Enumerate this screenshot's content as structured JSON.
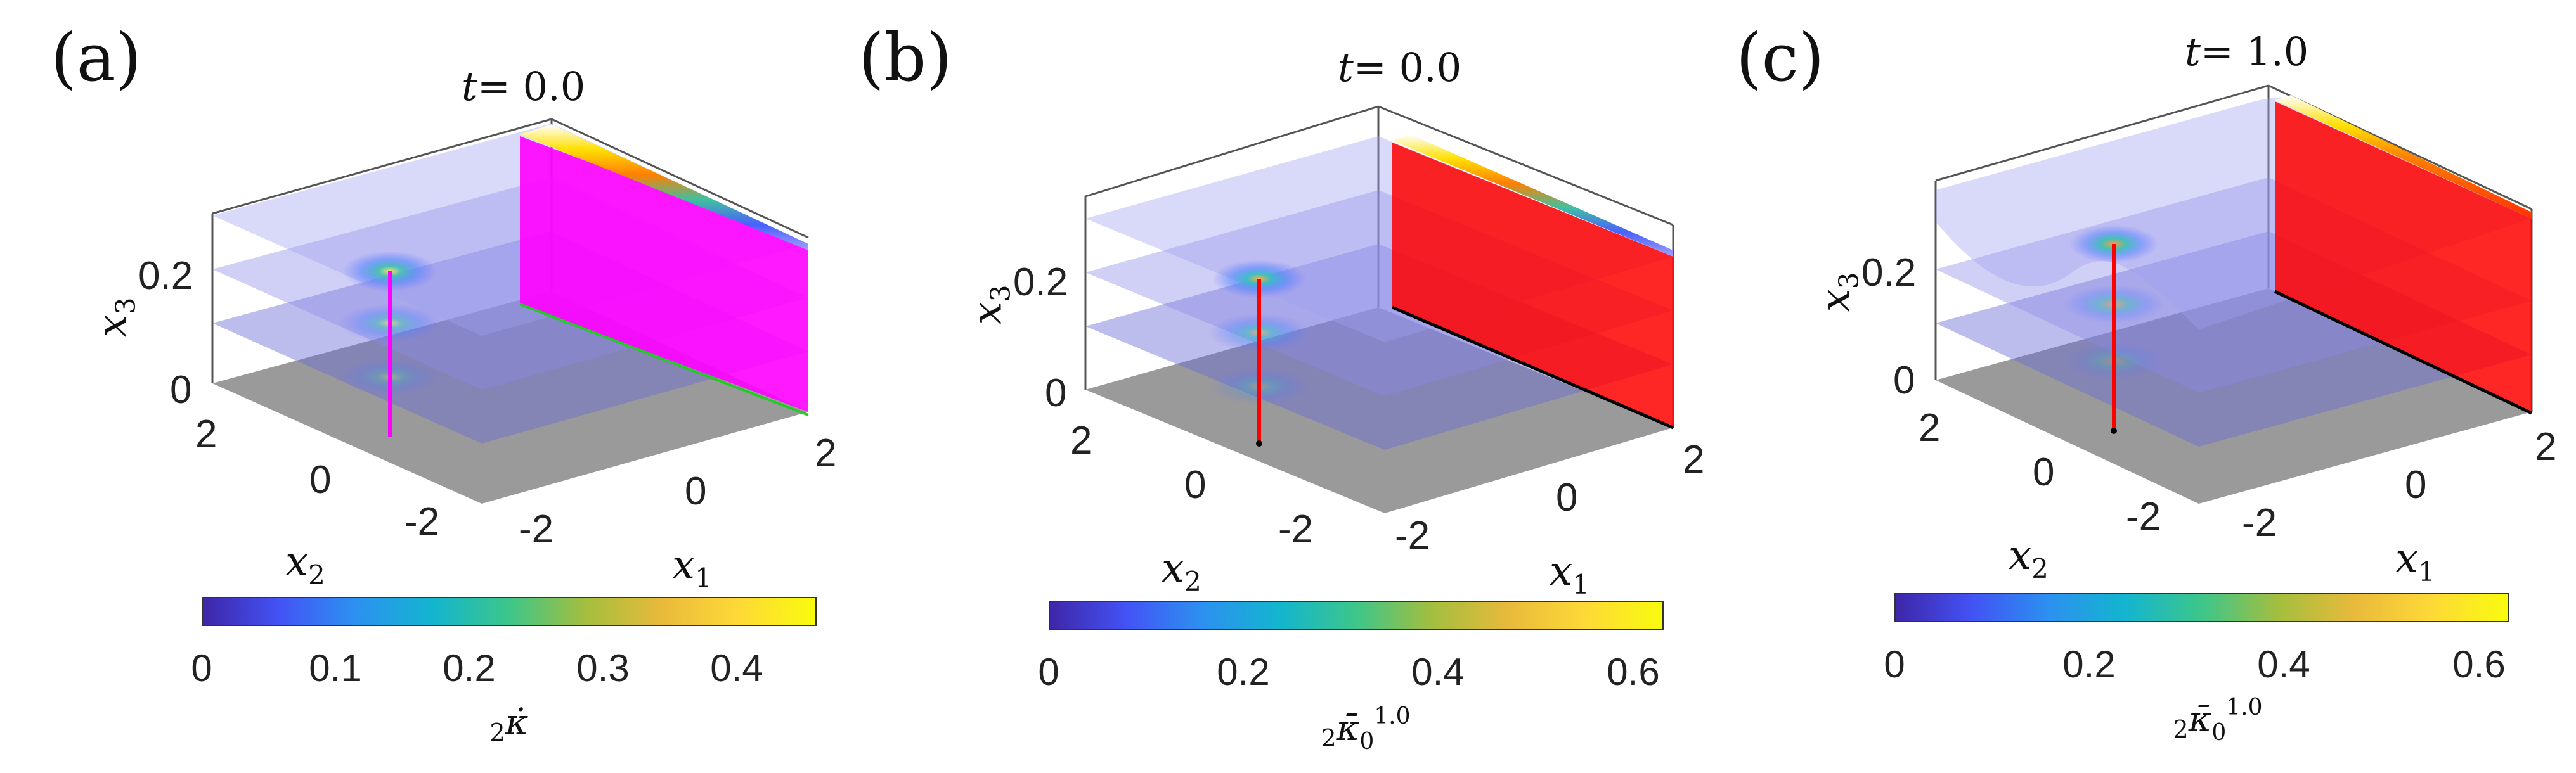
{
  "figure": {
    "panels": [
      {
        "label": "(a)",
        "title_var": "t",
        "title_val": "= 0.0",
        "x3_ticks": [
          "0",
          "0.2"
        ],
        "x2_ticks": [
          "2",
          "0",
          "-2"
        ],
        "x1_ticks": [
          "-2",
          "0",
          "2"
        ],
        "xlabel": "x",
        "xlabel_sub": "1",
        "ylabel": "x",
        "ylabel_sub": "2",
        "zlabel": "x",
        "zlabel_sub": "3",
        "colorbar_ticks": [
          "0",
          "0.1",
          "0.2",
          "0.3",
          "0.4"
        ],
        "colorbar_label": "κ̇",
        "colorbar_prefix": "2",
        "colorbar_sup": "",
        "colorbar_sub": "",
        "wall_color": "#ff00ff",
        "line_color": "#ff00ff",
        "base_line_color": "#22cc22"
      },
      {
        "label": "(b)",
        "title_var": "t",
        "title_val": "= 0.0",
        "x3_ticks": [
          "0",
          "0.2"
        ],
        "x2_ticks": [
          "2",
          "0",
          "-2"
        ],
        "x1_ticks": [
          "-2",
          "0",
          "2"
        ],
        "xlabel": "x",
        "xlabel_sub": "1",
        "ylabel": "x",
        "ylabel_sub": "2",
        "zlabel": "x",
        "zlabel_sub": "3",
        "colorbar_ticks": [
          "0",
          "0.2",
          "0.4",
          "0.6"
        ],
        "colorbar_label": "κ̄",
        "colorbar_prefix": "2",
        "colorbar_sup": "1.0",
        "colorbar_sub": "0",
        "wall_color": "#ff0000",
        "line_color": "#ff0000",
        "base_line_color": "#000000"
      },
      {
        "label": "(c)",
        "title_var": "t",
        "title_val": "= 1.0",
        "x3_ticks": [
          "0",
          "0.2"
        ],
        "x2_ticks": [
          "2",
          "0",
          "-2"
        ],
        "x1_ticks": [
          "-2",
          "0",
          "2"
        ],
        "xlabel": "x",
        "xlabel_sub": "1",
        "ylabel": "x",
        "ylabel_sub": "2",
        "zlabel": "x",
        "zlabel_sub": "3",
        "colorbar_ticks": [
          "0",
          "0.2",
          "0.4",
          "0.6"
        ],
        "colorbar_label": "κ̄",
        "colorbar_prefix": "2",
        "colorbar_sup": "1.0",
        "colorbar_sub": "0",
        "wall_color": "#ff0000",
        "line_color": "#ff0000",
        "base_line_color": "#000000"
      }
    ]
  },
  "chart_data": [
    {
      "type": "surface3d",
      "title": "t= 0.0",
      "xlabel": "x1",
      "ylabel": "x2",
      "zlabel": "x3",
      "x_range": [
        -2.5,
        2.5
      ],
      "y_range": [
        -2.5,
        2.5
      ],
      "z_range": [
        0,
        0.3
      ],
      "x_ticks": [
        -2,
        0,
        2
      ],
      "y_ticks": [
        -2,
        0,
        2
      ],
      "z_ticks": [
        0,
        0.2
      ],
      "slice_heights": [
        0.1,
        0.2,
        0.3
      ],
      "colorbar": {
        "label": "2κ̇",
        "range": [
          0,
          0.46
        ],
        "ticks": [
          0,
          0.1,
          0.2,
          0.3,
          0.4
        ]
      }
    },
    {
      "type": "surface3d",
      "title": "t= 0.0",
      "xlabel": "x1",
      "ylabel": "x2",
      "zlabel": "x3",
      "x_range": [
        -2.5,
        2.5
      ],
      "y_range": [
        -2.5,
        2.5
      ],
      "z_range": [
        0,
        0.3
      ],
      "x_ticks": [
        -2,
        0,
        2
      ],
      "y_ticks": [
        -2,
        0,
        2
      ],
      "z_ticks": [
        0,
        0.2
      ],
      "slice_heights": [
        0.1,
        0.2,
        0.3
      ],
      "colorbar": {
        "label": "2κ̄0^1.0",
        "range": [
          0,
          0.63
        ],
        "ticks": [
          0,
          0.2,
          0.4,
          0.6
        ]
      }
    },
    {
      "type": "surface3d",
      "title": "t= 1.0",
      "xlabel": "x1",
      "ylabel": "x2",
      "zlabel": "x3",
      "x_range": [
        -2.5,
        2.5
      ],
      "y_range": [
        -2.5,
        2.5
      ],
      "z_range": [
        0,
        0.3
      ],
      "x_ticks": [
        -2,
        0,
        2
      ],
      "y_ticks": [
        -2,
        0,
        2
      ],
      "z_ticks": [
        0,
        0.2
      ],
      "slice_heights": [
        0.1,
        0.2,
        0.3
      ],
      "colorbar": {
        "label": "2κ̄0^1.0",
        "range": [
          0,
          0.63
        ],
        "ticks": [
          0,
          0.2,
          0.4,
          0.6
        ]
      }
    }
  ]
}
